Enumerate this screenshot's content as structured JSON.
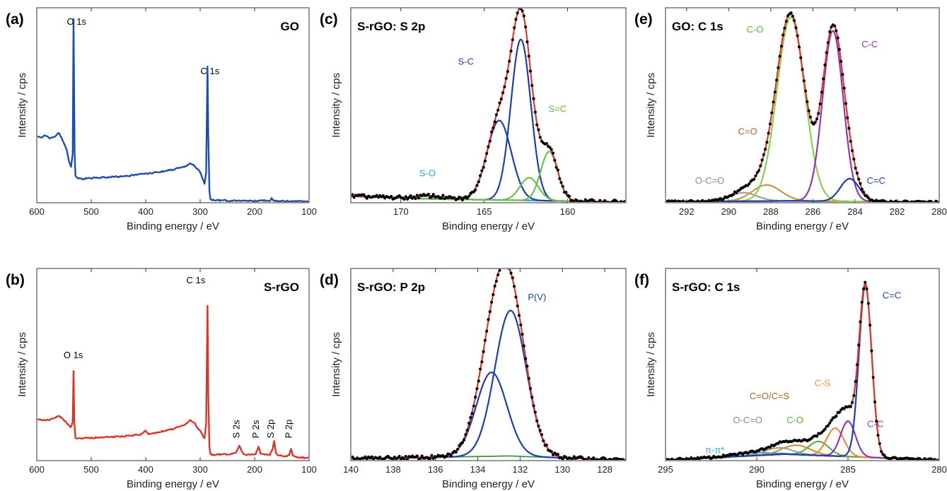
{
  "chart_data": [
    {
      "id": "a",
      "letter": "(a)",
      "title": "GO",
      "type": "line",
      "xlabel": "Binding energy / eV",
      "ylabel": "Intensity / cps",
      "xlim": [
        600,
        100
      ],
      "reversed_x": true,
      "xticks": [
        600,
        500,
        400,
        300,
        200,
        100
      ],
      "ylim": [
        0,
        100
      ],
      "style": "survey",
      "series": [
        {
          "color": "#1f4ea8",
          "x": [
            600,
            592,
            585,
            575,
            566,
            560,
            555,
            550,
            545,
            541,
            537,
            534,
            532.5,
            530.5,
            529,
            526,
            522,
            518,
            510,
            500,
            470,
            440,
            410,
            380,
            350,
            330,
            318,
            312,
            305,
            298,
            292,
            289,
            286.5,
            285,
            283,
            281,
            278,
            270,
            250,
            230,
            210,
            190,
            171,
            169,
            165,
            150,
            130,
            110,
            100
          ],
          "y": [
            35,
            34.5,
            35.5,
            34,
            35,
            37,
            34.5,
            31,
            28,
            22,
            19,
            26,
            97,
            26,
            14.5,
            13,
            12.8,
            12.6,
            12.8,
            13,
            13.5,
            14,
            15,
            16,
            17.5,
            19,
            20.5,
            20,
            18,
            15,
            10,
            16,
            72,
            35,
            6,
            1.8,
            1.4,
            1.3,
            1.2,
            1.1,
            1.0,
            1.1,
            1.2,
            2.5,
            1.1,
            0.9,
            0.8,
            0.7,
            0.7
          ]
        }
      ],
      "annotations": [
        {
          "text": "O 1s",
          "x": 527,
          "y": 94,
          "color": "#000"
        },
        {
          "text": "C 1s",
          "x": 282,
          "y": 68,
          "color": "#000"
        }
      ]
    },
    {
      "id": "b",
      "letter": "(b)",
      "title": "S-rGO",
      "type": "line",
      "xlabel": "Binding energy / eV",
      "ylabel": "Intensity / cps",
      "xlim": [
        600,
        100
      ],
      "reversed_x": true,
      "xticks": [
        600,
        500,
        400,
        300,
        200,
        100
      ],
      "ylim": [
        0,
        100
      ],
      "style": "survey",
      "series": [
        {
          "color": "#d9362b",
          "x": [
            600,
            592,
            585,
            575,
            566,
            560,
            555,
            548,
            542,
            537,
            534,
            532.5,
            531,
            529,
            526,
            520,
            510,
            500,
            470,
            440,
            410,
            400,
            395,
            380,
            350,
            330,
            318,
            310,
            303,
            296,
            292,
            289,
            286.5,
            285,
            283,
            281,
            278,
            270,
            250,
            235,
            228,
            224,
            220,
            210,
            198,
            193,
            189,
            185,
            172,
            167,
            164,
            161,
            155,
            140,
            136,
            133,
            130,
            120,
            110,
            100
          ],
          "y": [
            22,
            22,
            21.5,
            22,
            23,
            24,
            23,
            21,
            19,
            18,
            21,
            48,
            20,
            12,
            12,
            11.8,
            12,
            12.2,
            12.5,
            13,
            14,
            16,
            14,
            15,
            17,
            19,
            21.5,
            20,
            17,
            14,
            12,
            20,
            83,
            35,
            7,
            3.5,
            3,
            3.2,
            3.5,
            4,
            8,
            5,
            3.5,
            3.2,
            3.6,
            7.5,
            4,
            3.4,
            3.2,
            6,
            10.5,
            4,
            2.6,
            2.5,
            3,
            6.5,
            2.8,
            1.8,
            1.5,
            1.5
          ]
        }
      ],
      "annotations": [
        {
          "text": "O 1s",
          "x": 533,
          "y": 55,
          "color": "#000"
        },
        {
          "text": "C 1s",
          "x": 308,
          "y": 95,
          "color": "#000"
        },
        {
          "text": "S 2s",
          "x": 228,
          "y": 12,
          "color": "#000",
          "rotate": true
        },
        {
          "text": "P 2s",
          "x": 192,
          "y": 12,
          "color": "#000",
          "rotate": true
        },
        {
          "text": "S 2p",
          "x": 165,
          "y": 12,
          "color": "#000",
          "rotate": true
        },
        {
          "text": "P 2p",
          "x": 132,
          "y": 12,
          "color": "#000",
          "rotate": true
        }
      ]
    },
    {
      "id": "c",
      "letter": "(c)",
      "title": "S-rGO: S 2p",
      "type": "line",
      "xlabel": "Binding energy / eV",
      "ylabel": "Intensity / cps",
      "xlim": [
        173,
        156.5
      ],
      "reversed_x": true,
      "xticks": [
        170,
        165,
        160
      ],
      "ylim": [
        0,
        100
      ],
      "style": "fit",
      "background_color": "#3a9a3a",
      "envelope_color": "#e03a2a",
      "data_color": "#000000",
      "baseline": {
        "left": 3.5,
        "mid": 168,
        "mid_value": 2.0,
        "right": 0.4
      },
      "noise": 1.0,
      "components": [
        {
          "name": "S-O",
          "color": "#3aa0d8",
          "center": 168.2,
          "fwhm": 1.8,
          "height": 1.6
        },
        {
          "name": "S-C",
          "color": "#1f3fa8",
          "center": 164.1,
          "fwhm": 1.7,
          "height": 42
        },
        {
          "name": "S-C",
          "color": "#1f3fa8",
          "center": 162.8,
          "fwhm": 1.4,
          "height": 85
        },
        {
          "name": "S=C",
          "color": "#6cc04a",
          "center": 162.3,
          "fwhm": 1.3,
          "height": 12
        },
        {
          "name": "S=C",
          "color": "#6cc04a",
          "center": 161.1,
          "fwhm": 1.2,
          "height": 26
        }
      ],
      "annotations": [
        {
          "text": "S-C",
          "x": 166.1,
          "y": 73,
          "color": "#1f3fa8"
        },
        {
          "text": "S=C",
          "x": 160.6,
          "y": 48,
          "color": "#5cb43a"
        },
        {
          "text": "S-O",
          "x": 168.4,
          "y": 14,
          "color": "#3aa0d8"
        }
      ]
    },
    {
      "id": "d",
      "letter": "(d)",
      "title": "S-rGO: P 2p",
      "type": "line",
      "xlabel": "Binding energy / eV",
      "ylabel": "Intensity / cps",
      "xlim": [
        140,
        127
      ],
      "reversed_x": true,
      "xticks": [
        140,
        138,
        136,
        134,
        132,
        130,
        128
      ],
      "ylim": [
        0,
        100
      ],
      "style": "fit",
      "background_color": "#3a9a3a",
      "envelope_color": "#e03a2a",
      "data_color": "#000000",
      "baseline": {
        "left": 1.0,
        "mid": 132.5,
        "mid_value": 2.5,
        "right": 0.3
      },
      "noise": 1.0,
      "components": [
        {
          "name": "P(V)",
          "color": "#1f3fa8",
          "center": 133.35,
          "fwhm": 1.7,
          "height": 45
        },
        {
          "name": "P(V)",
          "color": "#1f3fa8",
          "center": 132.45,
          "fwhm": 1.75,
          "height": 78
        }
      ],
      "annotations": [
        {
          "text": "P(V)",
          "x": 131.2,
          "y": 86,
          "color": "#1f3fa8"
        }
      ]
    },
    {
      "id": "e",
      "letter": "(e)",
      "title": "GO: C 1s",
      "type": "line",
      "xlabel": "Binding energy / eV",
      "ylabel": "Intensity / cps",
      "xlim": [
        293,
        280
      ],
      "reversed_x": true,
      "xticks": [
        292,
        290,
        288,
        286,
        284,
        282,
        280
      ],
      "ylim": [
        0,
        100
      ],
      "style": "fit",
      "background_color": "#3a9a3a",
      "envelope_color": "#e03a2a",
      "data_color": "#000000",
      "baseline": {
        "left": 0.5,
        "mid": 287,
        "mid_value": 1.0,
        "right": 0.3
      },
      "noise": 0.6,
      "components": [
        {
          "name": "O-C=O",
          "color": "#a0a0a0",
          "center": 289.3,
          "fwhm": 1.5,
          "height": 4.5
        },
        {
          "name": "C=O",
          "color": "#c09a40",
          "center": 288.2,
          "fwhm": 1.6,
          "height": 8.5
        },
        {
          "name": "C-O",
          "color": "#8cd052",
          "center": 287.05,
          "fwhm": 1.55,
          "height": 97
        },
        {
          "name": "C-C",
          "color": "#8a3bb0",
          "center": 285.05,
          "fwhm": 1.15,
          "height": 90
        },
        {
          "name": "C=C",
          "color": "#1f3fa8",
          "center": 284.25,
          "fwhm": 1.05,
          "height": 12
        }
      ],
      "annotations": [
        {
          "text": "C-O",
          "x": 288.75,
          "y": 90,
          "color": "#5cb43a"
        },
        {
          "text": "C-C",
          "x": 283.3,
          "y": 82,
          "color": "#8a3bb0"
        },
        {
          "text": "C=O",
          "x": 289.1,
          "y": 36,
          "color": "#a06a20"
        },
        {
          "text": "O-C=O",
          "x": 290.9,
          "y": 10,
          "color": "#8a8a8a"
        },
        {
          "text": "C=C",
          "x": 283.0,
          "y": 10,
          "color": "#1f3fa8"
        }
      ]
    },
    {
      "id": "f",
      "letter": "(f)",
      "title": "S-rGO: C 1s",
      "type": "line",
      "xlabel": "Binding energy / eV",
      "ylabel": "Intensity / cps",
      "xlim": [
        295,
        280
      ],
      "reversed_x": true,
      "xticks": [
        295,
        290,
        285,
        280
      ],
      "ylim": [
        0,
        100
      ],
      "style": "fit",
      "background_color": "#3a9a3a",
      "envelope_color": "#e03a2a",
      "data_color": "#000000",
      "baseline": {
        "left": 0.3,
        "mid": 288.5,
        "mid_value": 3.5,
        "right": 0.3
      },
      "noise": 0.6,
      "components": [
        {
          "name": "π-π*",
          "color": "#3aa0d8",
          "center": 290.3,
          "fwhm": 2.5,
          "height": 1.5
        },
        {
          "name": "O-C=O",
          "color": "#a0a0a0",
          "center": 288.8,
          "fwhm": 1.8,
          "height": 3.5
        },
        {
          "name": "C=O/C=S",
          "color": "#c09a40",
          "center": 287.8,
          "fwhm": 1.8,
          "height": 5
        },
        {
          "name": "C-O",
          "color": "#5cb43a",
          "center": 286.6,
          "fwhm": 1.3,
          "height": 7.5
        },
        {
          "name": "C-S",
          "color": "#f08a3a",
          "center": 285.7,
          "fwhm": 1.1,
          "height": 15
        },
        {
          "name": "C-C",
          "color": "#8a3bb0",
          "center": 285.0,
          "fwhm": 0.95,
          "height": 19
        },
        {
          "name": "C=C",
          "color": "#1f3fa8",
          "center": 284.05,
          "fwhm": 0.82,
          "height": 92
        }
      ],
      "annotations": [
        {
          "text": "C=C",
          "x": 282.6,
          "y": 87,
          "color": "#1f3fa8"
        },
        {
          "text": "C-S",
          "x": 286.4,
          "y": 40,
          "color": "#f08a3a"
        },
        {
          "text": "C=O/C=S",
          "x": 289.3,
          "y": 33,
          "color": "#a06a20"
        },
        {
          "text": "O-C=O",
          "x": 290.5,
          "y": 20,
          "color": "#8a8a8a"
        },
        {
          "text": "C-O",
          "x": 287.9,
          "y": 20,
          "color": "#5cb43a"
        },
        {
          "text": "C-C",
          "x": 283.5,
          "y": 18,
          "color": "#8a3bb0"
        },
        {
          "text": "π-π*",
          "x": 292.3,
          "y": 4,
          "color": "#3aa0d8"
        }
      ]
    }
  ]
}
